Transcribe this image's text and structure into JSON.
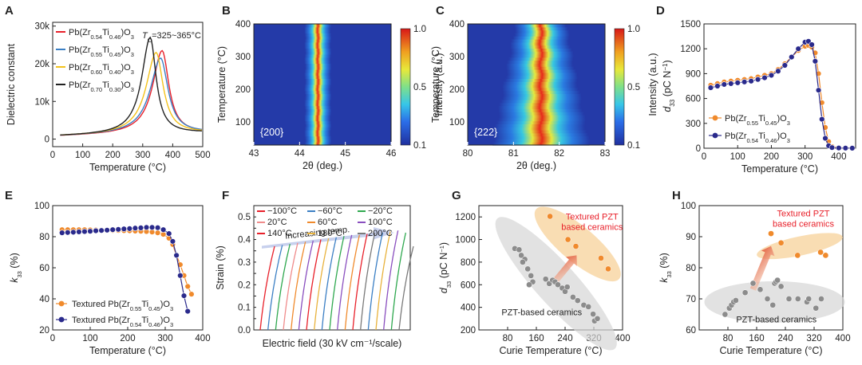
{
  "panels": [
    {
      "id": "A",
      "chart_data": {
        "type": "line",
        "xlabel": "Temperature (°C)",
        "ylabel": "Dielectric constant",
        "xlim": [
          0,
          500
        ],
        "ylim": [
          -2000,
          31000
        ],
        "xticks": [
          0,
          100,
          200,
          300,
          400,
          500
        ],
        "yticks": [
          {
            "v": 0,
            "l": "0"
          },
          {
            "v": 10000,
            "l": "10k"
          },
          {
            "v": 20000,
            "l": "20k"
          },
          {
            "v": 30000,
            "l": "30k"
          }
        ],
        "annotation": "T_C=325~365°C",
        "series": [
          {
            "name": "Pb(Zr0.54Ti0.46)O3",
            "color": "#e8202a",
            "peak_x": 365,
            "peak_y": 23500
          },
          {
            "name": "Pb(Zr0.55Ti0.45)O3",
            "color": "#3b7fc4",
            "peak_x": 360,
            "peak_y": 21500
          },
          {
            "name": "Pb(Zr0.60Ti0.40)O3",
            "color": "#f3c21c",
            "peak_x": 345,
            "peak_y": 23000
          },
          {
            "name": "Pb(Zr0.70Ti0.30)O3",
            "color": "#222222",
            "peak_x": 325,
            "peak_y": 27000
          }
        ]
      }
    },
    {
      "id": "B",
      "chart_data": {
        "type": "heatmap",
        "xlabel": "2θ (deg.)",
        "ylabel": "Temperature (°C)",
        "xlim": [
          43,
          46
        ],
        "ylim": [
          30,
          400
        ],
        "xticks": [
          43,
          44,
          45,
          46
        ],
        "yticks": [
          100,
          200,
          300,
          400
        ],
        "label": "{200}",
        "peak_center": 44.4,
        "peak_width": 0.18,
        "colorbar": {
          "label": "Intensity (a.u.)",
          "ticks": [
            "1.0",
            "0.5",
            "0.1"
          ]
        }
      }
    },
    {
      "id": "C",
      "chart_data": {
        "type": "heatmap",
        "xlabel": "2θ (deg.)",
        "ylabel": "Temperature (°C)",
        "xlim": [
          80,
          83
        ],
        "ylim": [
          30,
          400
        ],
        "xticks": [
          80,
          81,
          82,
          83
        ],
        "yticks": [
          100,
          200,
          300,
          400
        ],
        "label": "{222}",
        "peak_center": 81.6,
        "peak_width": 0.35,
        "colorbar": {
          "label": "Intensity (a.u.)",
          "ticks": [
            "1.0",
            "0.5",
            "0.1"
          ]
        }
      }
    },
    {
      "id": "D",
      "chart_data": {
        "type": "line",
        "xlabel": "Temperature (°C)",
        "ylabel": "d33 (pC N-1)",
        "xlim": [
          0,
          450
        ],
        "ylim": [
          0,
          1500
        ],
        "xticks": [
          0,
          100,
          200,
          300,
          400
        ],
        "yticks": [
          0,
          300,
          600,
          900,
          1200,
          1500
        ],
        "series": [
          {
            "name": "Pb(Zr0.55Ti0.45)O3",
            "color": "#f08a2c",
            "x": [
              20,
              40,
              60,
              80,
              100,
              120,
              140,
              160,
              180,
              200,
              220,
              240,
              260,
              280,
              300,
              310,
              320,
              330,
              340,
              350,
              360,
              370,
              380,
              400,
              420,
              440
            ],
            "y": [
              760,
              780,
              800,
              810,
              820,
              830,
              840,
              860,
              880,
              900,
              950,
              1020,
              1100,
              1180,
              1230,
              1240,
              1220,
              1150,
              900,
              550,
              250,
              80,
              20,
              5,
              3,
              2
            ]
          },
          {
            "name": "Pb(Zr0.54Ti0.46)O3",
            "color": "#2a2a8c",
            "x": [
              20,
              40,
              60,
              80,
              100,
              120,
              140,
              160,
              180,
              200,
              220,
              240,
              260,
              280,
              300,
              310,
              320,
              330,
              340,
              350,
              360,
              370,
              380,
              400,
              420,
              440
            ],
            "y": [
              730,
              750,
              770,
              780,
              790,
              800,
              810,
              830,
              850,
              880,
              930,
              1000,
              1100,
              1200,
              1280,
              1290,
              1250,
              1050,
              700,
              350,
              120,
              30,
              8,
              3,
              2,
              1
            ]
          }
        ]
      }
    },
    {
      "id": "E",
      "chart_data": {
        "type": "line",
        "xlabel": "Temperature (°C)",
        "ylabel": "k33 (%)",
        "xlim": [
          0,
          400
        ],
        "ylim": [
          20,
          100
        ],
        "xticks": [
          0,
          100,
          200,
          300,
          400
        ],
        "yticks": [
          20,
          40,
          60,
          80,
          100
        ],
        "series": [
          {
            "name": "Textured Pb(Zr0.55Ti0.45)O3",
            "color": "#f08a2c",
            "x": [
              25,
              40,
              55,
              70,
              85,
              100,
              115,
              130,
              145,
              160,
              175,
              190,
              205,
              220,
              235,
              250,
              265,
              280,
              295,
              310,
              320,
              330,
              340,
              350,
              360,
              370
            ],
            "y": [
              84.5,
              84.5,
              84.5,
              84.5,
              84.5,
              84.4,
              84.3,
              84.2,
              84.1,
              84,
              84,
              83.9,
              83.8,
              83.6,
              83.5,
              83.3,
              83,
              82.5,
              81.5,
              79,
              75,
              68,
              62,
              55,
              48,
              43
            ]
          },
          {
            "name": "Textured Pb(Zr0.54Ti0.46)O3",
            "color": "#2a2a8c",
            "x": [
              25,
              40,
              55,
              70,
              85,
              100,
              115,
              130,
              145,
              160,
              175,
              190,
              205,
              220,
              235,
              250,
              265,
              280,
              295,
              310,
              320,
              330,
              340,
              350,
              360
            ],
            "y": [
              82.5,
              82.7,
              82.9,
              83.1,
              83.3,
              83.5,
              83.8,
              84,
              84.2,
              84.5,
              84.7,
              85,
              85.2,
              85.5,
              85.7,
              86,
              86,
              85.8,
              84.5,
              82,
              77,
              68,
              55,
              42,
              32
            ]
          }
        ]
      }
    },
    {
      "id": "F",
      "chart_data": {
        "type": "line",
        "xlabel": "Electric field (30 kV cm⁻¹/scale)",
        "ylabel": "Strain (%)",
        "ylim": [
          0,
          0.55
        ],
        "yticks": [
          0,
          0.05,
          0.1,
          0.15,
          0.2,
          0.25,
          0.3,
          0.35,
          0.4,
          0.45,
          0.5
        ],
        "annotation": "Increasing temp.",
        "legend": [
          {
            "name": "−100°C",
            "color": "#e8202a"
          },
          {
            "name": "−60°C",
            "color": "#3b7fc4"
          },
          {
            "name": "−20°C",
            "color": "#2fa84f"
          },
          {
            "name": "20°C",
            "color": "#f08c8c"
          },
          {
            "name": "60°C",
            "color": "#f08a2c"
          },
          {
            "name": "100°C",
            "color": "#8a4fbf"
          },
          {
            "name": "140°C",
            "color": "#e8202a"
          },
          {
            "name": "180°C",
            "color": "#e8b23c"
          },
          {
            "name": "200°C",
            "color": "#7a7a7a"
          }
        ],
        "curve_colors": [
          "#e8202a",
          "#3b7fc4",
          "#2fa84f",
          "#f08c8c",
          "#f08a2c",
          "#8a4fbf",
          "#e8202a",
          "#e8b23c",
          "#3b7fc4",
          "#2fa84f",
          "#8a4fbf",
          "#f08a2c",
          "#e8202a",
          "#7a7a7a",
          "#3b7fc4",
          "#e8b23c",
          "#8a4fbf",
          "#2fa84f",
          "#7a7a7a"
        ],
        "curve_max": [
          0.37,
          0.375,
          0.38,
          0.385,
          0.39,
          0.395,
          0.4,
          0.405,
          0.41,
          0.415,
          0.42,
          0.42,
          0.425,
          0.43,
          0.43,
          0.435,
          0.44,
          0.43,
          0.37
        ]
      }
    },
    {
      "id": "G",
      "chart_data": {
        "type": "scatter",
        "xlabel": "Curie Temperature (°C)",
        "ylabel": "d33 (pC N-1)",
        "xlim": [
          0,
          400
        ],
        "ylim": [
          200,
          1300
        ],
        "xticks": [
          80,
          160,
          240,
          320,
          400
        ],
        "yticks": [
          200,
          400,
          600,
          800,
          1000,
          1200
        ],
        "annotations": [
          "Textured PZT based ceramics",
          "PZT-based ceramics"
        ],
        "series": [
          {
            "name": "Textured PZT based ceramics",
            "color": "#f08a2c",
            "x": [
              198,
              248,
              270,
              340,
              360
            ],
            "y": [
              1205,
              1000,
              940,
              835,
              740
            ]
          },
          {
            "name": "PZT-based ceramics",
            "color": "#8c8c8c",
            "x": [
              100,
              112,
              118,
              128,
              122,
              136,
              145,
              150,
              140,
              186,
              196,
              205,
              212,
              220,
              232,
              240,
              246,
              262,
              275,
              292,
              305,
              318,
              322,
              330
            ],
            "y": [
              920,
              910,
              860,
              825,
              800,
              740,
              680,
              625,
              600,
              650,
              610,
              640,
              625,
              600,
              570,
              540,
              580,
              490,
              460,
              420,
              405,
              340,
              280,
              300
            ]
          }
        ]
      }
    },
    {
      "id": "H",
      "chart_data": {
        "type": "scatter",
        "xlabel": "Curie Temperature (°C)",
        "ylabel": "k33 (%)",
        "xlim": [
          0,
          400
        ],
        "ylim": [
          60,
          100
        ],
        "xticks": [
          80,
          160,
          240,
          320,
          400
        ],
        "yticks": [
          60,
          70,
          80,
          90,
          100
        ],
        "annotations": [
          "Textured PZT based ceramics",
          "PZT-based ceramics"
        ],
        "series": [
          {
            "name": "Textured PZT based ceramics",
            "color": "#f08a2c",
            "x": [
              200,
              228,
              274,
              338,
              352
            ],
            "y": [
              91,
              88,
              84,
              85,
              84
            ]
          },
          {
            "name": "PZT-based ceramics",
            "color": "#8c8c8c",
            "x": [
              72,
              84,
              90,
              96,
              102,
              128,
              150,
              170,
              190,
              205,
              210,
              214,
              218,
              228,
              250,
              275,
              300,
              305,
              325,
              340
            ],
            "y": [
              65,
              67,
              68,
              69,
              69.5,
              72,
              75,
              73,
              70,
              68,
              75,
              75.5,
              76,
              74,
              70,
              70,
              69,
              70,
              67,
              70
            ]
          }
        ]
      }
    }
  ]
}
